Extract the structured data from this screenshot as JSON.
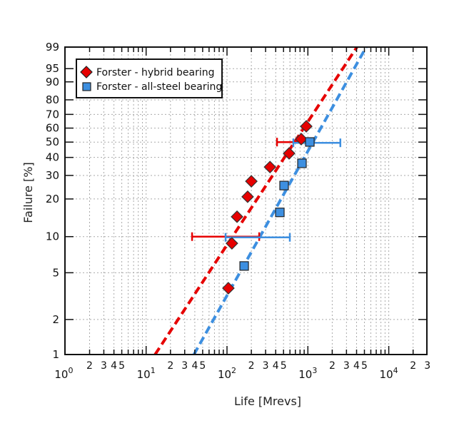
{
  "chart_data": {
    "type": "scatter",
    "title": "",
    "xlabel": "Life  [Mrevs]",
    "ylabel": "Failure  [%]",
    "x_scale": "log",
    "y_scale": "weibull",
    "xlim": [
      1,
      30000
    ],
    "ylim": [
      1,
      99
    ],
    "grid": true,
    "legend_position": "top-left",
    "x_decade_labels": [
      {
        "base": "10",
        "exp": "0"
      },
      {
        "base": "10",
        "exp": "1"
      },
      {
        "base": "10",
        "exp": "2"
      },
      {
        "base": "10",
        "exp": "3"
      },
      {
        "base": "10",
        "exp": "4"
      }
    ],
    "x_minor_labels": [
      "2",
      "3",
      "4",
      "5"
    ],
    "y_ticks": [
      1,
      2,
      5,
      10,
      20,
      30,
      40,
      50,
      60,
      70,
      80,
      90,
      95,
      99
    ],
    "series": [
      {
        "name": "Forster - hybrid bearing",
        "marker": "diamond",
        "color": "#e60000",
        "points": [
          [
            104,
            3.7
          ],
          [
            115,
            8.8
          ],
          [
            133,
            14.5
          ],
          [
            180,
            20.8
          ],
          [
            200,
            27.2
          ],
          [
            340,
            34.4
          ],
          [
            586,
            42.5
          ],
          [
            828,
            52.1
          ],
          [
            955,
            61.3
          ]
        ],
        "fit_line": [
          [
            12.9,
            1
          ],
          [
            4036,
            99
          ]
        ],
        "error_bars": [
          {
            "y": 10,
            "x_low": 37,
            "x_high": 250
          },
          {
            "y": 50,
            "x_low": 415,
            "x_high": 1100
          }
        ]
      },
      {
        "name": "Forster - all-steel bearing",
        "marker": "square",
        "color": "#3d8fe0",
        "points": [
          [
            163,
            5.7
          ],
          [
            450,
            15.7
          ],
          [
            508,
            25.3
          ],
          [
            845,
            36.5
          ],
          [
            1057,
            50.1
          ]
        ],
        "fit_line": [
          [
            39,
            1
          ],
          [
            5260,
            99
          ]
        ],
        "error_bars": [
          {
            "y": 10,
            "x_low": 96,
            "x_high": 598
          },
          {
            "y": 50,
            "x_low": 661,
            "x_high": 2520
          }
        ]
      }
    ]
  }
}
